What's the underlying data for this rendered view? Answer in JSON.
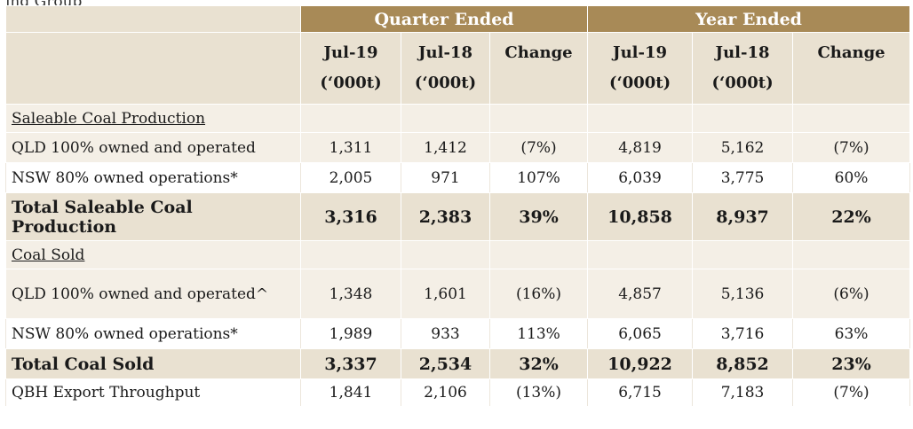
{
  "caption_fragment": "ing Group",
  "header": {
    "quarter_label": "Quarter Ended",
    "year_label": "Year Ended",
    "columns": [
      {
        "line1": "Jul-19",
        "line2": "(‘000t)"
      },
      {
        "line1": "Jul-18",
        "line2": "(‘000t)"
      },
      {
        "line1": "Change",
        "line2": ""
      },
      {
        "line1": "Jul-19",
        "line2": "(‘000t)"
      },
      {
        "line1": "Jul-18",
        "line2": "(‘000t)"
      },
      {
        "line1": "Change",
        "line2": ""
      }
    ]
  },
  "rows": [
    {
      "label": "Saleable Coal Production",
      "kind": "section",
      "values": [
        "",
        "",
        "",
        "",
        "",
        ""
      ]
    },
    {
      "label": "QLD 100% owned and operated",
      "kind": "data",
      "values": [
        "1,311",
        "1,412",
        "(7%)",
        "4,819",
        "5,162",
        "(7%)"
      ]
    },
    {
      "label": "NSW  80% owned operations*",
      "kind": "data",
      "values": [
        "2,005",
        "971",
        "107%",
        "6,039",
        "3,775",
        "60%"
      ]
    },
    {
      "label": "Total Saleable Coal Production",
      "kind": "total",
      "values": [
        "3,316",
        "2,383",
        "39%",
        "10,858",
        "8,937",
        "22%"
      ]
    },
    {
      "label": "Coal Sold",
      "kind": "section",
      "values": [
        "",
        "",
        "",
        "",
        "",
        ""
      ]
    },
    {
      "label": "QLD 100% owned and operated^",
      "kind": "data",
      "values": [
        "1,348",
        "1,601",
        "(16%)",
        "4,857",
        "5,136",
        "(6%)"
      ]
    },
    {
      "label": "NSW  80% owned operations*",
      "kind": "data",
      "values": [
        "1,989",
        "933",
        "113%",
        "6,065",
        "3,716",
        "63%"
      ]
    },
    {
      "label": "Total Coal Sold",
      "kind": "total",
      "values": [
        "3,337",
        "2,534",
        "32%",
        "10,922",
        "8,852",
        "23%"
      ]
    },
    {
      "label": "QBH Export Throughput",
      "kind": "data",
      "values": [
        "1,841",
        "2,106",
        "(13%)",
        "6,715",
        "7,183",
        "(7%)"
      ]
    }
  ]
}
